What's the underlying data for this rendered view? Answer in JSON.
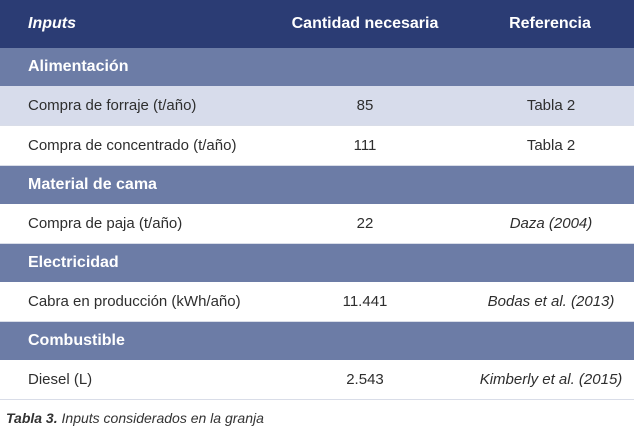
{
  "table": {
    "headers": {
      "inputs": "Inputs",
      "quantity": "Cantidad necesaria",
      "reference": "Referencia"
    },
    "sections": [
      {
        "title": "Alimentación",
        "rows": [
          {
            "input": "Compra de forraje (t/año)",
            "quantity": "85",
            "reference": "Tabla 2"
          },
          {
            "input": "Compra de concentrado (t/año)",
            "quantity": "111",
            "reference": "Tabla 2"
          }
        ]
      },
      {
        "title": "Material de cama",
        "rows": [
          {
            "input": "Compra de paja (t/año)",
            "quantity": "22",
            "reference": "Daza (2004)"
          }
        ]
      },
      {
        "title": "Electricidad",
        "rows": [
          {
            "input": "Cabra en producción (kWh/año)",
            "quantity": "11.441",
            "reference": "Bodas et al. (2013)"
          }
        ]
      },
      {
        "title": "Combustible",
        "rows": [
          {
            "input": "Diesel (L)",
            "quantity": "2.543",
            "reference": "Kimberly et al. (2015)"
          }
        ]
      }
    ]
  },
  "caption": {
    "label": "Tabla 3.",
    "text": " Inputs considerados en la granja"
  },
  "colors": {
    "header_bg": "#2b3c74",
    "section_bg": "#6c7ca6",
    "shaded_row_bg": "#d7dceb"
  }
}
